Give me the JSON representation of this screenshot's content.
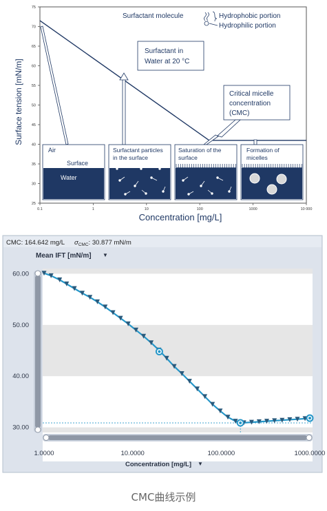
{
  "caption": "CMC曲线示例",
  "chart_data": [
    {
      "type": "line",
      "xlabel": "Concentration [mg/L]",
      "ylabel": "Surface tension [mN/m]",
      "x_scale": "log",
      "xlim": [
        0.1,
        10000
      ],
      "ylim": [
        25,
        75
      ],
      "x_ticks": [
        "0.1",
        "1",
        "10",
        "100",
        "1000",
        "10 000"
      ],
      "y_ticks": [
        "25",
        "30",
        "35",
        "40",
        "45",
        "50",
        "55",
        "60",
        "65",
        "70",
        "75"
      ],
      "series": [
        {
          "points": [
            [
              0.1,
              71.5
            ],
            [
              150,
              41
            ],
            [
              10000,
              41
            ]
          ]
        }
      ],
      "annotations": {
        "surfactant_molecule": "Surfactant molecule",
        "hydrophobic": "Hydrophobic portion",
        "hydrophilic": "Hydrophilic portion",
        "condition_line1": "Surfactant in",
        "condition_line2": "Water at 20 °C",
        "cmc_line1": "Critical micelle",
        "cmc_line2": "concentration",
        "cmc_line3": "(CMC)"
      },
      "panels": [
        {
          "title_line1": "Air",
          "title_line2": "",
          "label_surface": "Surface",
          "label_water": "Water"
        },
        {
          "title_line1": "Surfactant particles",
          "title_line2": "in the surface"
        },
        {
          "title_line1": "Saturation of the",
          "title_line2": "surface"
        },
        {
          "title_line1": "Formation of",
          "title_line2": "micelles"
        }
      ],
      "colors": {
        "text": "#1f3864",
        "water": "#1f3864"
      }
    },
    {
      "type": "line",
      "header": {
        "cmc_label": "CMC: 164.642 mg/L",
        "sigma_label": "σ",
        "sigma_sub": "CMC",
        "sigma_value": ": 30.877 mN/m"
      },
      "ylabel": "Mean IFT [mN/m]",
      "xlabel": "Concentration [mg/L]",
      "x_scale": "log",
      "xlim": [
        1,
        1000
      ],
      "ylim": [
        29,
        61
      ],
      "y_ticks": [
        "30.00",
        "40.00",
        "50.00",
        "60.00"
      ],
      "x_ticks": [
        "1.0000",
        "10.0000",
        "100.0000",
        "1000.0000"
      ],
      "series": [
        {
          "x": [
            1.0,
            1.2,
            1.5,
            1.8,
            2.2,
            2.7,
            3.3,
            4.0,
            4.9,
            6.0,
            7.3,
            8.9,
            10.9,
            13.3,
            16.2,
            19.8,
            24.2,
            29.5,
            36.0,
            43.9,
            53.6,
            65.4,
            79.8,
            97.4,
            118.9,
            145.0,
            164.6,
            180,
            220,
            268,
            327,
            399,
            487,
            594,
            725,
            884,
            1000
          ],
          "y": [
            60.1,
            59.6,
            58.8,
            58.0,
            57.1,
            56.2,
            55.4,
            54.5,
            53.5,
            52.4,
            51.3,
            50.2,
            49.0,
            47.8,
            46.5,
            45.1,
            43.5,
            41.9,
            40.5,
            39.0,
            37.5,
            36.0,
            34.5,
            33.2,
            32.0,
            31.2,
            30.9,
            30.9,
            31.0,
            31.1,
            31.2,
            31.3,
            31.4,
            31.5,
            31.6,
            31.7,
            31.8
          ]
        }
      ],
      "markers": [
        [
          20,
          44.8
        ],
        [
          164.642,
          30.877
        ],
        [
          1000,
          31.8
        ]
      ],
      "cmc_x": 164.642,
      "cmc_y": 30.877,
      "colors": {
        "line": "#2596c8",
        "marker": "#2a5a7c",
        "band": "#e6e6e6",
        "panel": "#dde3ec"
      }
    }
  ]
}
